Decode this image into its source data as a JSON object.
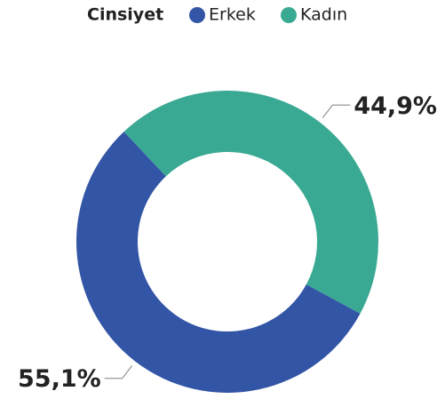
{
  "chart_data": {
    "type": "donut",
    "legend_title": "Cinsiyet",
    "categories": [
      "Erkek",
      "Kadın"
    ],
    "values": [
      55.1,
      44.9
    ],
    "value_labels": [
      "55,1%",
      "44,9%"
    ],
    "colors": [
      "#3355a6",
      "#3aa993"
    ]
  }
}
